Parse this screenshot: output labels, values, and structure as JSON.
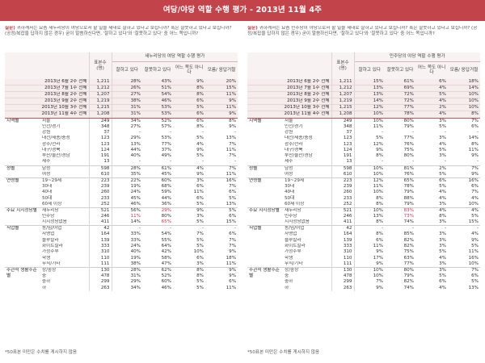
{
  "title": "여당/야당 역할 수행 평가 - 2013년 11월 4주",
  "highlight_color": "#d0324a",
  "left": {
    "question_label": "질문)",
    "question": "귀하께서는 요즘 새누리당이 여당으로서 할 일을 제대로 잘하고 있다고 보십니까? 혹은 잘못하고 있다고 보십니까? (공정/복잡을 답하지 않은 경우) 굳이 말씀하신다면, '잘하고 있다'와 '잘못하고 있다' 중 어느 쪽입니까?",
    "header": {
      "sample": "표본수 (명)",
      "group": "새누리당의 여당 역할 수행 평가",
      "cols": [
        "잘하고 있다",
        "잘못하고 있다",
        "어느 쪽도 아니다",
        "모름/ 응답거절"
      ]
    },
    "trend": [
      [
        "2013년 6월 2주 전체",
        "1,211",
        "28%",
        "43%",
        "9%",
        "20%"
      ],
      [
        "2013년 7월 1주 전체",
        "1,212",
        "26%",
        "51%",
        "8%",
        "15%"
      ],
      [
        "2013년 8월 2주 전체",
        "1,207",
        "27%",
        "54%",
        "8%",
        "11%"
      ],
      [
        "2013년 9월 2주 전체",
        "1,219",
        "38%",
        "46%",
        "6%",
        "9%"
      ],
      [
        "2013년 10월 3주 전체",
        "1,215",
        "31%",
        "53%",
        "5%",
        "11%"
      ],
      [
        "2013년 11월 4주 전체",
        "1,208",
        "31%",
        "53%",
        "6%",
        "9%"
      ]
    ],
    "groups": [
      {
        "name": "지역별",
        "rows": [
          [
            "서울",
            "249",
            "34%",
            "52%",
            "6%",
            "8%"
          ],
          [
            "인천/경기",
            "348",
            "27%",
            "57%",
            "8%",
            "9%"
          ],
          [
            "강원",
            "37",
            "-",
            "-",
            "-",
            "-"
          ],
          [
            "대전/세종/충청",
            "123",
            "29%",
            "53%",
            "5%",
            "13%"
          ],
          [
            "광주/전라",
            "123",
            "13%",
            "77%",
            "4%",
            "7%"
          ],
          [
            "대구/경북",
            "124",
            "44%",
            "37%",
            "9%",
            "11%"
          ],
          [
            "부산/울산/경남",
            "191",
            "40%",
            "49%",
            "5%",
            "7%"
          ],
          [
            "제주",
            "13",
            "-",
            "-",
            "-",
            "-"
          ]
        ]
      },
      {
        "name": "성별",
        "rows": [
          [
            "남성",
            "598",
            "28%",
            "61%",
            "4%",
            "7%"
          ],
          [
            "여성",
            "610",
            "35%",
            "45%",
            "9%",
            "11%"
          ]
        ]
      },
      {
        "name": "연령별",
        "rows": [
          [
            "19~29세",
            "223",
            "22%",
            "60%",
            "3%",
            "16%"
          ],
          [
            "30대",
            "239",
            "19%",
            "68%",
            "6%",
            "7%"
          ],
          [
            "40대",
            "260",
            "24%",
            "59%",
            "11%",
            "6%"
          ],
          [
            "50대",
            "233",
            "45%",
            "44%",
            "6%",
            "5%"
          ],
          [
            "60세 이상",
            "252",
            "46%",
            "36%",
            "5%",
            "13%"
          ]
        ]
      },
      {
        "name": "주요 지지정당별",
        "rows": [
          [
            "새누리당",
            "521",
            "56%",
            "29%",
            "9%",
            "5%"
          ],
          [
            "민주당",
            "246",
            "11%",
            "80%",
            "3%",
            "6%"
          ],
          [
            "지지정당없음",
            "411",
            "14%",
            "65%",
            "5%",
            "15%"
          ]
        ]
      },
      {
        "name": "직업별",
        "rows": [
          [
            "농/임/어업",
            "42",
            "-",
            "-",
            "-",
            "-"
          ],
          [
            "자영업",
            "164",
            "33%",
            "54%",
            "7%",
            "6%"
          ],
          [
            "블루칼라",
            "139",
            "33%",
            "55%",
            "5%",
            "7%"
          ],
          [
            "화이트칼라",
            "333",
            "24%",
            "64%",
            "5%",
            "7%"
          ],
          [
            "가정주부",
            "310",
            "40%",
            "42%",
            "10%",
            "9%"
          ],
          [
            "학생",
            "110",
            "19%",
            "58%",
            "6%",
            "18%"
          ],
          [
            "무직/기타",
            "111",
            "38%",
            "47%",
            "3%",
            "11%"
          ]
        ]
      },
      {
        "name": "주관적 생활수준별",
        "rows": [
          [
            "상/중상",
            "130",
            "28%",
            "62%",
            "8%",
            "9%"
          ],
          [
            "중",
            "478",
            "31%",
            "52%",
            "8%",
            "9%"
          ],
          [
            "중하",
            "299",
            "29%",
            "60%",
            "5%",
            "6%"
          ],
          [
            "하",
            "263",
            "34%",
            "46%",
            "5%",
            "11%"
          ]
        ]
      }
    ],
    "highlights": [
      [
        3,
        0,
        3
      ],
      [
        3,
        1,
        2
      ],
      [
        3,
        2,
        3
      ]
    ],
    "footnote": "*50표본 미만은 수치를 게시하지 않음"
  },
  "right": {
    "question_label": "질문)",
    "question": "귀하께서는 요즘 민주당이 야당으로서 할 일을 제대로 잘하고 있다고 보십니까? 혹은 잘못하고 있다고 보십니까? (공정/복잡을 답하지 않은 경우) 굳이 말씀하신다면, '잘하고 있다'와 '잘못하고 있다' 중 어느 쪽입니까?",
    "header": {
      "sample": "표본수 (명)",
      "group": "민주당의 야당 역할 수행 평가",
      "cols": [
        "잘하고 있다",
        "잘못하고 있다",
        "어느 쪽도 아니다",
        "모름/ 응답거절"
      ]
    },
    "trend": [
      [
        "2013년 6월 2주 전체",
        "1,211",
        "15%",
        "61%",
        "6%",
        "18%"
      ],
      [
        "2013년 7월 1주 전체",
        "1,212",
        "13%",
        "69%",
        "4%",
        "14%"
      ],
      [
        "2013년 8월 2주 전체",
        "1,207",
        "13%",
        "72%",
        "5%",
        "10%"
      ],
      [
        "2013년 9월 2주 전체",
        "1,219",
        "14%",
        "72%",
        "4%",
        "10%"
      ],
      [
        "2013년 10월 3주 전체",
        "1,215",
        "12%",
        "77%",
        "2%",
        "10%"
      ],
      [
        "2013년 11월 4주 전체",
        "1,208",
        "10%",
        "78%",
        "4%",
        "8%"
      ]
    ],
    "groups": [
      {
        "name": "지역별",
        "rows": [
          [
            "서울",
            "249",
            "10%",
            "80%",
            "3%",
            "7%"
          ],
          [
            "인천/경기",
            "348",
            "11%",
            "79%",
            "5%",
            "6%"
          ],
          [
            "강원",
            "37",
            "-",
            "-",
            "-",
            "-"
          ],
          [
            "대전/세종/충청",
            "123",
            "5%",
            "77%",
            "3%",
            "14%"
          ],
          [
            "광주/전라",
            "123",
            "12%",
            "76%",
            "4%",
            "8%"
          ],
          [
            "대구/경북",
            "124",
            "9%",
            "75%",
            "5%",
            "11%"
          ],
          [
            "부산/울산/경남",
            "191",
            "8%",
            "80%",
            "3%",
            "9%"
          ],
          [
            "제주",
            "13",
            "-",
            "-",
            "-",
            "-"
          ]
        ]
      },
      {
        "name": "성별",
        "rows": [
          [
            "남성",
            "598",
            "10%",
            "81%",
            "2%",
            "7%"
          ],
          [
            "여성",
            "610",
            "10%",
            "76%",
            "5%",
            "9%"
          ]
        ]
      },
      {
        "name": "연령별",
        "rows": [
          [
            "19~29세",
            "223",
            "12%",
            "65%",
            "6%",
            "16%"
          ],
          [
            "30대",
            "239",
            "11%",
            "78%",
            "5%",
            "6%"
          ],
          [
            "40대",
            "260",
            "10%",
            "79%",
            "4%",
            "7%"
          ],
          [
            "50대",
            "233",
            "8%",
            "88%",
            "4%",
            "4%"
          ],
          [
            "60세 이상",
            "252",
            "8%",
            "79%",
            "3%",
            "10%"
          ]
        ]
      },
      {
        "name": "주요 지지정당별",
        "rows": [
          [
            "새누리당",
            "521",
            "10%",
            "83%",
            "4%",
            "4%"
          ],
          [
            "민주당",
            "246",
            "13%",
            "73%",
            "8%",
            "5%"
          ],
          [
            "지지정당없음",
            "411",
            "8%",
            "74%",
            "3%",
            "15%"
          ]
        ]
      },
      {
        "name": "직업별",
        "rows": [
          [
            "농/임/어업",
            "42",
            "-",
            "-",
            "-",
            "-"
          ],
          [
            "자영업",
            "164",
            "8%",
            "85%",
            "3%",
            "4%"
          ],
          [
            "블루칼라",
            "139",
            "6%",
            "82%",
            "3%",
            "9%"
          ],
          [
            "화이트칼라",
            "333",
            "11%",
            "82%",
            "3%",
            "5%"
          ],
          [
            "가정주부",
            "310",
            "9%",
            "75%",
            "5%",
            "11%"
          ],
          [
            "학생",
            "110",
            "17%",
            "63%",
            "4%",
            "16%"
          ],
          [
            "무직/기타",
            "111",
            "9%",
            "77%",
            "3%",
            "10%"
          ]
        ]
      },
      {
        "name": "주관적 생활수준별",
        "rows": [
          [
            "상/중상",
            "130",
            "10%",
            "80%",
            "3%",
            "7%"
          ],
          [
            "중",
            "478",
            "10%",
            "79%",
            "5%",
            "6%"
          ],
          [
            "중하",
            "299",
            "7%",
            "82%",
            "6%",
            "5%"
          ],
          [
            "하",
            "263",
            "9%",
            "74%",
            "4%",
            "13%"
          ]
        ]
      }
    ],
    "highlights": [
      [
        3,
        0,
        3
      ],
      [
        3,
        1,
        3
      ]
    ],
    "footnote": "*50표본 미만은 수치를 게시하지 않음"
  }
}
